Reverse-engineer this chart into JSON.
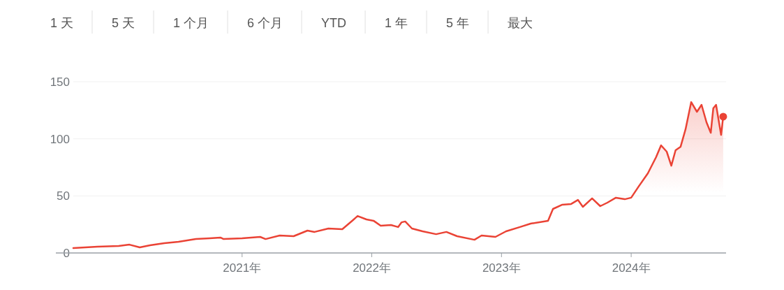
{
  "chart_data": {
    "type": "area",
    "x": [
      "2019-09-14",
      "2019-11-21",
      "2020-01-20",
      "2020-02-19",
      "2020-03-19",
      "2020-04-17",
      "2020-05-27",
      "2020-07-06",
      "2020-08-24",
      "2020-10-02",
      "2020-11-01",
      "2020-11-10",
      "2021-01-01",
      "2021-02-21",
      "2021-03-08",
      "2021-04-17",
      "2021-05-26",
      "2021-07-04",
      "2021-07-24",
      "2021-09-01",
      "2021-10-10",
      "2021-11-09",
      "2021-11-22",
      "2021-12-17",
      "2022-01-06",
      "2022-01-26",
      "2022-02-24",
      "2022-03-16",
      "2022-03-26",
      "2022-04-05",
      "2022-04-24",
      "2022-05-24",
      "2022-07-01",
      "2022-07-30",
      "2022-08-29",
      "2022-10-17",
      "2022-11-06",
      "2022-12-15",
      "2023-01-14",
      "2023-02-22",
      "2023-03-24",
      "2023-05-12",
      "2023-05-26",
      "2023-06-20",
      "2023-07-16",
      "2023-08-04",
      "2023-08-18",
      "2023-09-13",
      "2023-10-06",
      "2023-10-26",
      "2023-11-19",
      "2023-12-14",
      "2024-01-01",
      "2024-01-22",
      "2024-02-17",
      "2024-03-11",
      "2024-03-25",
      "2024-04-10",
      "2024-04-23",
      "2024-05-05",
      "2024-05-19",
      "2024-06-02",
      "2024-06-18",
      "2024-07-04",
      "2024-07-17",
      "2024-07-31",
      "2024-08-12",
      "2024-08-19",
      "2024-08-27",
      "2024-09-10",
      "2024-09-16"
    ],
    "series": [
      {
        "color": "#ea4335",
        "values": [
          4.3,
          5.5,
          6.1,
          7.3,
          4.9,
          6.7,
          8.6,
          9.8,
          12.2,
          12.9,
          13.5,
          12.2,
          12.9,
          14.1,
          12.2,
          15.3,
          14.7,
          19.6,
          18.4,
          21.4,
          20.8,
          28.8,
          32.4,
          29.4,
          28.2,
          23.9,
          24.5,
          22.7,
          26.9,
          27.6,
          21.4,
          19.0,
          16.5,
          18.4,
          14.7,
          11.6,
          15.3,
          14.1,
          19.0,
          22.7,
          25.7,
          28.2,
          38.6,
          42.2,
          42.9,
          46.5,
          40.4,
          47.8,
          41.0,
          44.1,
          48.4,
          47.1,
          48.4,
          58.2,
          69.8,
          83.9,
          94.3,
          88.8,
          76.5,
          90.0,
          93.1,
          108.4,
          132.2,
          123.7,
          129.8,
          114.5,
          105.3,
          126.7,
          129.8,
          103.5,
          119.4
        ]
      },
      {
        "type": "scatter",
        "color": "#ea4335",
        "x": [
          "2024-09-16"
        ],
        "values": [
          119.4
        ]
      }
    ],
    "xlim": [
      "2019-09-14",
      "2024-09-24"
    ],
    "xticks": [
      {
        "value": "2021-01-01",
        "label": "2021年"
      },
      {
        "value": "2022-01-01",
        "label": "2022年"
      },
      {
        "value": "2023-01-01",
        "label": "2023年"
      },
      {
        "value": "2024-01-01",
        "label": "2024年"
      }
    ],
    "ylim": [
      0,
      150
    ],
    "yticks": [
      0,
      50,
      100,
      150
    ],
    "grid": "y",
    "annotations": [
      "1 天",
      "5 天",
      "1 个月",
      "6 个月",
      "YTD",
      "1 年",
      "5 年",
      "最大"
    ]
  }
}
